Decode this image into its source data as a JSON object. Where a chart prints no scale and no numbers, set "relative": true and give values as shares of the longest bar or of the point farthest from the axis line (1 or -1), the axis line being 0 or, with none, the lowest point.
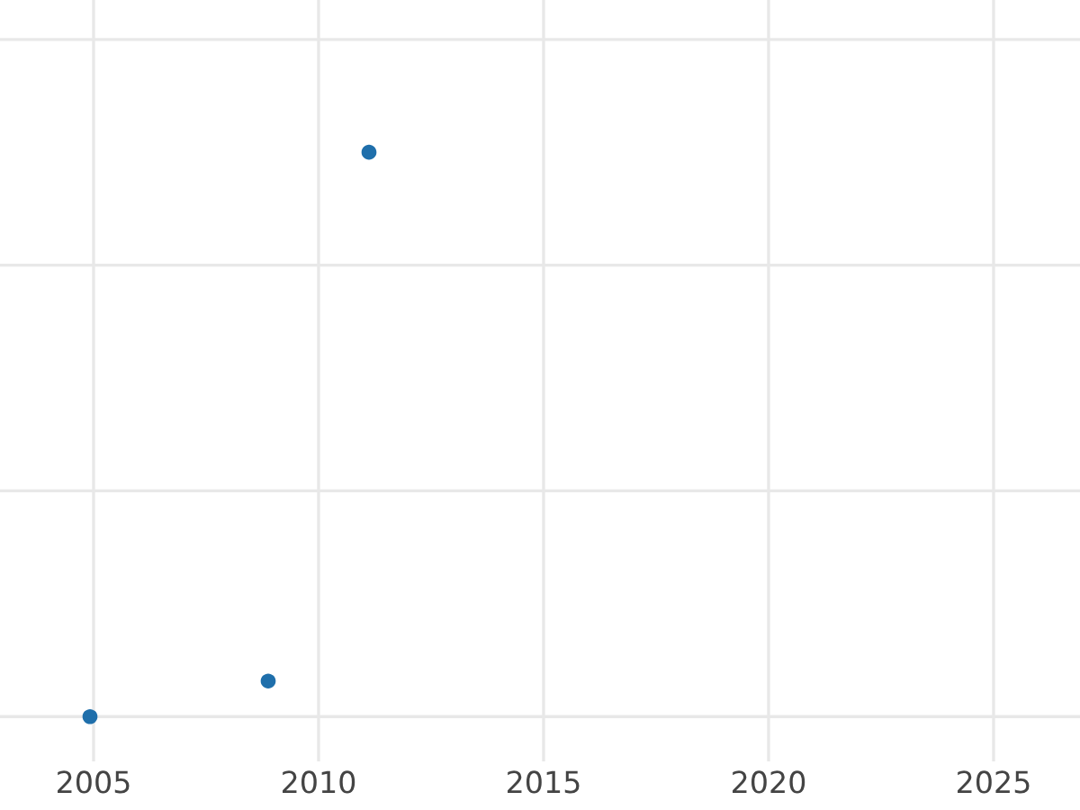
{
  "chart_data": {
    "type": "scatter",
    "relative": true,
    "x": [
      2004.92,
      2008.88,
      2011.12
    ],
    "series": [
      {
        "color": "#1f6fab",
        "values": [
          0,
          0.063,
          1
        ]
      }
    ],
    "xlim": [
      2002.92,
      2026.92
    ],
    "xticks": [
      2005,
      2010,
      2015,
      2020,
      2025
    ],
    "grid": true,
    "marker": "circle",
    "tick_labels": "x"
  }
}
